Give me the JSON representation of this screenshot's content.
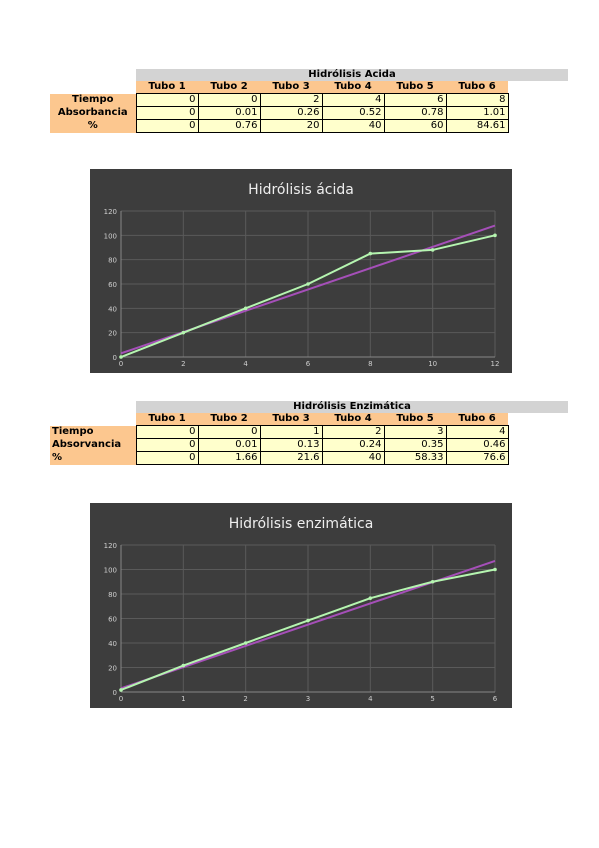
{
  "table1": {
    "title": "Hidrólisis Acida",
    "headers": [
      "Tubo 1",
      "Tubo 2",
      "Tubo 3",
      "Tubo 4",
      "Tubo 5",
      "Tubo 6"
    ],
    "rows": [
      {
        "label": "Tiempo",
        "values": [
          "0",
          "0",
          "2",
          "4",
          "6",
          "8"
        ]
      },
      {
        "label": "Absorbancia",
        "values": [
          "0",
          "0.01",
          "0.26",
          "0.52",
          "0.78",
          "1.01"
        ]
      },
      {
        "label": "%",
        "values": [
          "0",
          "0.76",
          "20",
          "40",
          "60",
          "84.61"
        ]
      }
    ]
  },
  "table2": {
    "title": "Hidrólisis Enzimática",
    "headers": [
      "Tubo 1",
      "Tubo 2",
      "Tubo 3",
      "Tubo 4",
      "Tubo 5",
      "Tubo 6"
    ],
    "rows": [
      {
        "label": "Tiempo",
        "values": [
          "0",
          "0",
          "1",
          "2",
          "3",
          "4"
        ]
      },
      {
        "label": "Absorvancia",
        "values": [
          "0",
          "0.01",
          "0.13",
          "0.24",
          "0.35",
          "0.46"
        ]
      },
      {
        "label": "%",
        "values": [
          "0",
          "1.66",
          "21.6",
          "40",
          "58.33",
          "76.6"
        ]
      }
    ]
  },
  "chart_data": [
    {
      "type": "line",
      "title": "Hidrólisis ácida",
      "xlim": [
        0,
        12
      ],
      "ylim": [
        0,
        120
      ],
      "xticks": [
        0,
        2,
        4,
        6,
        8,
        10,
        12
      ],
      "yticks": [
        0,
        20,
        40,
        60,
        80,
        100,
        120
      ],
      "grid": true,
      "series": [
        {
          "color": "#b5f5b0",
          "x": [
            0,
            2,
            4,
            6,
            8,
            10,
            12
          ],
          "y": [
            0,
            20,
            40,
            60,
            85,
            88,
            100
          ],
          "markers": true
        },
        {
          "color": "#a54fb8",
          "x": [
            0,
            12
          ],
          "y": [
            3,
            108
          ],
          "markers": false
        }
      ]
    },
    {
      "type": "line",
      "title": "Hidrólisis enzimática",
      "xlim": [
        0,
        6
      ],
      "ylim": [
        0,
        120
      ],
      "xticks": [
        0,
        1,
        2,
        3,
        4,
        5,
        6
      ],
      "yticks": [
        0,
        20,
        40,
        60,
        80,
        100,
        120
      ],
      "grid": true,
      "series": [
        {
          "color": "#b5f5b0",
          "x": [
            0,
            1,
            2,
            3,
            4,
            5,
            6
          ],
          "y": [
            1.66,
            21.6,
            40,
            58.33,
            76.6,
            90,
            100
          ],
          "markers": true
        },
        {
          "color": "#a54fb8",
          "x": [
            0,
            6
          ],
          "y": [
            3,
            107
          ],
          "markers": false
        }
      ]
    }
  ]
}
